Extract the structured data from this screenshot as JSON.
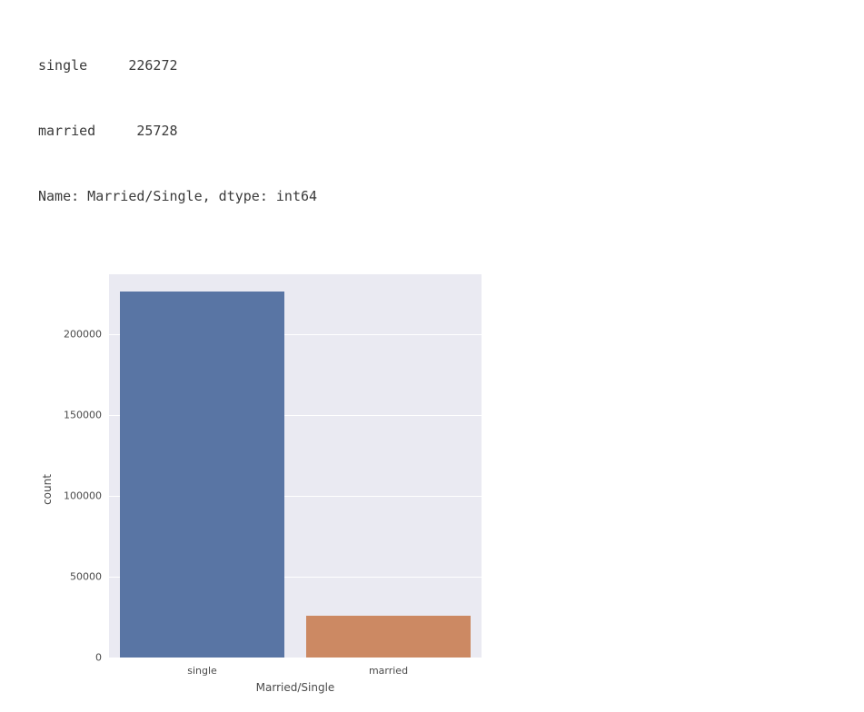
{
  "text_output": {
    "lines": [
      "single     226272",
      "married     25728",
      "Name: Married/Single, dtype: int64"
    ],
    "color": "#3a3a3a",
    "fontsize": 15
  },
  "chart": {
    "type": "bar",
    "plot_background": "#eaeaf2",
    "grid_color": "#ffffff",
    "tick_color": "#4a4a4a",
    "tick_fontsize": 11,
    "label_fontsize": 12,
    "ylabel": "count",
    "xlabel": "Married/Single",
    "ylim": [
      0,
      237000
    ],
    "yticks": [
      0,
      50000,
      100000,
      150000,
      200000
    ],
    "categories": [
      "single",
      "married"
    ],
    "values": [
      226272,
      25728
    ],
    "bar_colors": [
      "#5975a4",
      "#cc8963"
    ],
    "bar_width_rel": 0.44,
    "bar_positions_rel": [
      0.25,
      0.75
    ]
  }
}
